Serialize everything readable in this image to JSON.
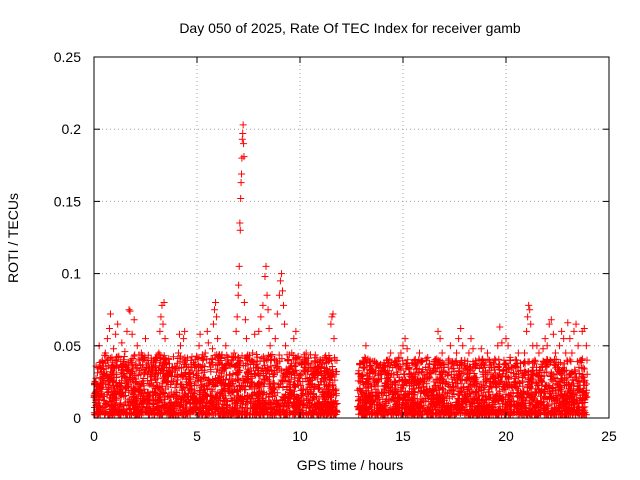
{
  "chart_data": {
    "type": "scatter",
    "title": "Day 050 of 2025, Rate Of TEC Index for receiver gamb",
    "xlabel": "GPS time / hours",
    "ylabel": "ROTI / TECUs",
    "xlim": [
      0,
      25
    ],
    "ylim": [
      0,
      0.25
    ],
    "xticks": [
      0,
      5,
      10,
      15,
      20,
      25
    ],
    "xtick_labels": [
      "0",
      "5",
      "10",
      "15",
      "20",
      "25"
    ],
    "yticks": [
      0,
      0.05,
      0.1,
      0.15,
      0.2,
      0.25
    ],
    "ytick_labels": [
      "0",
      "0.05",
      "0.1",
      "0.15",
      "0.2",
      "0.25"
    ],
    "grid": true,
    "marker": "+",
    "color": "#ff0000",
    "series": [
      {
        "name": "ROTI",
        "points": [
          [
            0.1,
            0.012
          ],
          [
            0.15,
            0.022
          ],
          [
            0.2,
            0.035
          ],
          [
            0.25,
            0.05
          ],
          [
            0.3,
            0.028
          ],
          [
            0.35,
            0.018
          ],
          [
            0.4,
            0.04
          ],
          [
            0.45,
            0.025
          ],
          [
            0.5,
            0.015
          ],
          [
            0.55,
            0.045
          ],
          [
            0.6,
            0.03
          ],
          [
            0.65,
            0.055
          ],
          [
            0.7,
            0.02
          ],
          [
            0.75,
            0.062
          ],
          [
            0.8,
            0.072
          ],
          [
            0.85,
            0.035
          ],
          [
            0.9,
            0.025
          ],
          [
            0.95,
            0.048
          ],
          [
            1.0,
            0.018
          ],
          [
            1.05,
            0.058
          ],
          [
            1.1,
            0.03
          ],
          [
            1.15,
            0.065
          ],
          [
            1.2,
            0.042
          ],
          [
            1.3,
            0.02
          ],
          [
            1.35,
            0.052
          ],
          [
            1.4,
            0.036
          ],
          [
            1.45,
            0.015
          ],
          [
            1.5,
            0.046
          ],
          [
            1.55,
            0.028
          ],
          [
            1.6,
            0.06
          ],
          [
            1.65,
            0.022
          ],
          [
            1.7,
            0.075
          ],
          [
            1.75,
            0.074
          ],
          [
            1.8,
            0.04
          ],
          [
            1.85,
            0.058
          ],
          [
            1.9,
            0.025
          ],
          [
            1.95,
            0.068
          ],
          [
            2.0,
            0.012
          ],
          [
            2.05,
            0.034
          ],
          [
            2.1,
            0.05
          ],
          [
            2.2,
            0.02
          ],
          [
            2.3,
            0.045
          ],
          [
            2.4,
            0.015
          ],
          [
            2.5,
            0.055
          ],
          [
            2.6,
            0.03
          ],
          [
            2.7,
            0.01
          ],
          [
            2.8,
            0.04
          ],
          [
            2.9,
            0.022
          ],
          [
            3.0,
            0.035
          ],
          [
            3.1,
            0.008
          ],
          [
            3.15,
            0.045
          ],
          [
            3.2,
            0.06
          ],
          [
            3.25,
            0.07
          ],
          [
            3.3,
            0.078
          ],
          [
            3.35,
            0.065
          ],
          [
            3.4,
            0.08
          ],
          [
            3.45,
            0.055
          ],
          [
            3.5,
            0.04
          ],
          [
            3.55,
            0.025
          ],
          [
            3.6,
            0.015
          ],
          [
            3.65,
            0.01
          ],
          [
            3.7,
            0.006
          ],
          [
            3.8,
            0.004
          ],
          [
            3.9,
            0.008
          ],
          [
            4.0,
            0.015
          ],
          [
            4.05,
            0.03
          ],
          [
            4.1,
            0.045
          ],
          [
            4.15,
            0.058
          ],
          [
            4.2,
            0.05
          ],
          [
            4.25,
            0.035
          ],
          [
            4.3,
            0.02
          ],
          [
            4.35,
            0.055
          ],
          [
            4.4,
            0.06
          ],
          [
            4.45,
            0.04
          ],
          [
            4.5,
            0.025
          ],
          [
            4.55,
            0.015
          ],
          [
            4.6,
            0.03
          ],
          [
            4.7,
            0.02
          ],
          [
            4.8,
            0.01
          ],
          [
            4.9,
            0.018
          ],
          [
            5.0,
            0.028
          ],
          [
            5.05,
            0.042
          ],
          [
            5.1,
            0.05
          ],
          [
            5.15,
            0.058
          ],
          [
            5.2,
            0.035
          ],
          [
            5.3,
            0.022
          ],
          [
            5.4,
            0.045
          ],
          [
            5.5,
            0.06
          ],
          [
            5.55,
            0.052
          ],
          [
            5.6,
            0.038
          ],
          [
            5.65,
            0.025
          ],
          [
            5.7,
            0.015
          ],
          [
            5.75,
            0.048
          ],
          [
            5.8,
            0.065
          ],
          [
            5.85,
            0.075
          ],
          [
            5.9,
            0.08
          ],
          [
            5.95,
            0.07
          ],
          [
            6.0,
            0.055
          ],
          [
            6.05,
            0.04
          ],
          [
            6.1,
            0.028
          ],
          [
            6.2,
            0.018
          ],
          [
            6.3,
            0.035
          ],
          [
            6.4,
            0.05
          ],
          [
            6.5,
            0.042
          ],
          [
            6.6,
            0.03
          ],
          [
            6.7,
            0.02
          ],
          [
            6.8,
            0.045
          ],
          [
            6.9,
            0.06
          ],
          [
            6.95,
            0.07
          ],
          [
            7.0,
            0.085
          ],
          [
            7.02,
            0.092
          ],
          [
            7.05,
            0.105
          ],
          [
            7.08,
            0.135
          ],
          [
            7.1,
            0.13
          ],
          [
            7.12,
            0.152
          ],
          [
            7.14,
            0.163
          ],
          [
            7.16,
            0.169
          ],
          [
            7.18,
            0.18
          ],
          [
            7.2,
            0.193
          ],
          [
            7.22,
            0.197
          ],
          [
            7.24,
            0.203
          ],
          [
            7.26,
            0.19
          ],
          [
            7.28,
            0.181
          ],
          [
            7.3,
            0.08
          ],
          [
            7.35,
            0.068
          ],
          [
            7.4,
            0.055
          ],
          [
            7.45,
            0.04
          ],
          [
            7.5,
            0.03
          ],
          [
            7.6,
            0.022
          ],
          [
            7.7,
            0.045
          ],
          [
            7.8,
            0.058
          ],
          [
            7.9,
            0.035
          ],
          [
            8.0,
            0.06
          ],
          [
            8.1,
            0.07
          ],
          [
            8.2,
            0.078
          ],
          [
            8.3,
            0.098
          ],
          [
            8.35,
            0.105
          ],
          [
            8.4,
            0.085
          ],
          [
            8.45,
            0.075
          ],
          [
            8.5,
            0.062
          ],
          [
            8.55,
            0.05
          ],
          [
            8.6,
            0.04
          ],
          [
            8.7,
            0.03
          ],
          [
            8.8,
            0.055
          ],
          [
            8.9,
            0.072
          ],
          [
            9.0,
            0.085
          ],
          [
            9.05,
            0.095
          ],
          [
            9.1,
            0.1
          ],
          [
            9.15,
            0.088
          ],
          [
            9.2,
            0.078
          ],
          [
            9.25,
            0.065
          ],
          [
            9.3,
            0.05
          ],
          [
            9.4,
            0.04
          ],
          [
            9.5,
            0.03
          ],
          [
            9.6,
            0.045
          ],
          [
            9.7,
            0.055
          ],
          [
            9.8,
            0.06
          ],
          [
            9.9,
            0.042
          ],
          [
            10.0,
            0.03
          ],
          [
            10.1,
            0.02
          ],
          [
            10.2,
            0.035
          ],
          [
            10.3,
            0.045
          ],
          [
            10.4,
            0.025
          ],
          [
            10.5,
            0.018
          ],
          [
            10.6,
            0.03
          ],
          [
            10.7,
            0.022
          ],
          [
            10.8,
            0.015
          ],
          [
            10.9,
            0.035
          ],
          [
            11.0,
            0.025
          ],
          [
            11.1,
            0.04
          ],
          [
            11.2,
            0.032
          ],
          [
            11.3,
            0.02
          ],
          [
            11.4,
            0.03
          ],
          [
            11.5,
            0.065
          ],
          [
            11.55,
            0.07
          ],
          [
            11.6,
            0.072
          ],
          [
            11.65,
            0.055
          ],
          [
            11.7,
            0.04
          ],
          [
            11.75,
            0.02
          ],
          [
            11.8,
            0.01
          ],
          [
            12.8,
            0.008
          ],
          [
            12.85,
            0.012
          ],
          [
            12.9,
            0.02
          ],
          [
            12.95,
            0.025
          ],
          [
            13.0,
            0.018
          ],
          [
            13.05,
            0.03
          ],
          [
            13.1,
            0.035
          ],
          [
            13.15,
            0.042
          ],
          [
            13.2,
            0.05
          ],
          [
            13.25,
            0.038
          ],
          [
            13.3,
            0.025
          ],
          [
            13.35,
            0.015
          ],
          [
            13.4,
            0.01
          ],
          [
            13.5,
            0.012
          ],
          [
            13.6,
            0.022
          ],
          [
            13.7,
            0.018
          ],
          [
            13.8,
            0.025
          ],
          [
            13.9,
            0.03
          ],
          [
            14.0,
            0.035
          ],
          [
            14.1,
            0.022
          ],
          [
            14.2,
            0.04
          ],
          [
            14.3,
            0.03
          ],
          [
            14.4,
            0.045
          ],
          [
            14.5,
            0.035
          ],
          [
            14.6,
            0.02
          ],
          [
            14.7,
            0.038
          ],
          [
            14.8,
            0.042
          ],
          [
            14.9,
            0.045
          ],
          [
            15.0,
            0.05
          ],
          [
            15.1,
            0.055
          ],
          [
            15.2,
            0.048
          ],
          [
            15.3,
            0.035
          ],
          [
            15.4,
            0.025
          ],
          [
            15.5,
            0.02
          ],
          [
            15.6,
            0.03
          ],
          [
            15.7,
            0.038
          ],
          [
            15.8,
            0.045
          ],
          [
            15.9,
            0.032
          ],
          [
            16.0,
            0.022
          ],
          [
            16.1,
            0.035
          ],
          [
            16.2,
            0.042
          ],
          [
            16.3,
            0.028
          ],
          [
            16.4,
            0.018
          ],
          [
            16.5,
            0.025
          ],
          [
            16.6,
            0.032
          ],
          [
            16.7,
            0.06
          ],
          [
            16.8,
            0.055
          ],
          [
            16.9,
            0.045
          ],
          [
            17.0,
            0.035
          ],
          [
            17.1,
            0.025
          ],
          [
            17.2,
            0.04
          ],
          [
            17.3,
            0.05
          ],
          [
            17.4,
            0.038
          ],
          [
            17.5,
            0.028
          ],
          [
            17.6,
            0.045
          ],
          [
            17.7,
            0.055
          ],
          [
            17.8,
            0.062
          ],
          [
            17.9,
            0.05
          ],
          [
            18.0,
            0.04
          ],
          [
            18.1,
            0.03
          ],
          [
            18.2,
            0.045
          ],
          [
            18.3,
            0.055
          ],
          [
            18.4,
            0.048
          ],
          [
            18.5,
            0.035
          ],
          [
            18.6,
            0.025
          ],
          [
            18.7,
            0.04
          ],
          [
            18.8,
            0.048
          ],
          [
            18.9,
            0.035
          ],
          [
            19.0,
            0.03
          ],
          [
            19.1,
            0.045
          ],
          [
            19.2,
            0.04
          ],
          [
            19.3,
            0.035
          ],
          [
            19.4,
            0.028
          ],
          [
            19.5,
            0.04
          ],
          [
            19.6,
            0.05
          ],
          [
            19.7,
            0.063
          ],
          [
            19.8,
            0.052
          ],
          [
            19.9,
            0.04
          ],
          [
            20.0,
            0.055
          ],
          [
            20.1,
            0.05
          ],
          [
            20.2,
            0.042
          ],
          [
            20.3,
            0.035
          ],
          [
            20.4,
            0.025
          ],
          [
            20.5,
            0.03
          ],
          [
            20.6,
            0.045
          ],
          [
            20.7,
            0.038
          ],
          [
            20.8,
            0.028
          ],
          [
            20.9,
            0.045
          ],
          [
            21.0,
            0.06
          ],
          [
            21.05,
            0.07
          ],
          [
            21.1,
            0.078
          ],
          [
            21.15,
            0.075
          ],
          [
            21.2,
            0.065
          ],
          [
            21.3,
            0.05
          ],
          [
            21.4,
            0.04
          ],
          [
            21.5,
            0.05
          ],
          [
            21.6,
            0.045
          ],
          [
            21.7,
            0.035
          ],
          [
            21.8,
            0.048
          ],
          [
            21.9,
            0.055
          ],
          [
            22.0,
            0.05
          ],
          [
            22.1,
            0.065
          ],
          [
            22.2,
            0.068
          ],
          [
            22.3,
            0.058
          ],
          [
            22.4,
            0.045
          ],
          [
            22.5,
            0.035
          ],
          [
            22.6,
            0.05
          ],
          [
            22.7,
            0.06
          ],
          [
            22.8,
            0.055
          ],
          [
            22.9,
            0.045
          ],
          [
            23.0,
            0.066
          ],
          [
            23.1,
            0.055
          ],
          [
            23.2,
            0.045
          ],
          [
            23.3,
            0.06
          ],
          [
            23.4,
            0.065
          ],
          [
            23.5,
            0.05
          ],
          [
            23.6,
            0.04
          ],
          [
            23.7,
            0.06
          ],
          [
            23.8,
            0.062
          ],
          [
            23.9,
            0.05
          ]
        ],
        "band": {
          "segments": [
            {
              "x_from": 0.0,
              "x_to": 11.8,
              "y_min": 0.002,
              "y_max": 0.03
            },
            {
              "x_from": 12.8,
              "x_to": 23.95,
              "y_min": 0.002,
              "y_max": 0.028
            }
          ],
          "approx_count": 4200
        }
      }
    ]
  }
}
